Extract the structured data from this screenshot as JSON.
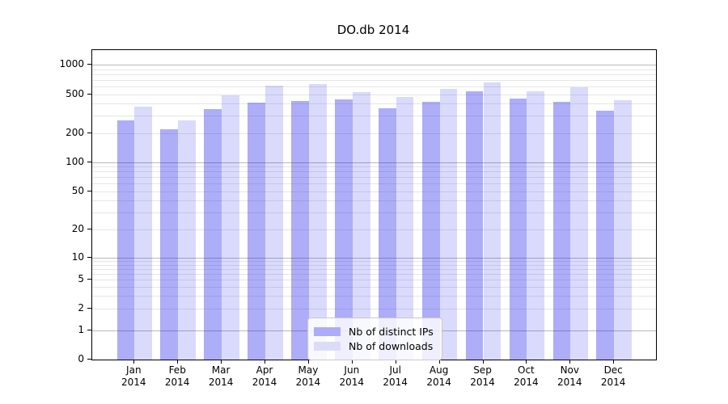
{
  "chart_data": {
    "type": "bar",
    "title": "DO.db 2014",
    "categories": [
      "Jan 2014",
      "Feb 2014",
      "Mar 2014",
      "Apr 2014",
      "May 2014",
      "Jun 2014",
      "Jul 2014",
      "Aug 2014",
      "Sep 2014",
      "Oct 2014",
      "Nov 2014",
      "Dec 2014"
    ],
    "series": [
      {
        "name": "Nb of distinct IPs",
        "color": "rgba(20,20,235,0.35)",
        "solid_hex": "#acacf8",
        "values": [
          270,
          220,
          355,
          410,
          430,
          440,
          360,
          420,
          540,
          450,
          420,
          340
        ]
      },
      {
        "name": "Nb of downloads",
        "color": "rgba(20,20,235,0.155)",
        "solid_hex": "#dcdcf9",
        "values": [
          375,
          270,
          485,
          610,
          640,
          525,
          465,
          565,
          660,
          535,
          595,
          435
        ]
      }
    ],
    "yscale": "symlog",
    "ylim": [
      0,
      1500
    ],
    "yticks": [
      1000,
      500,
      200,
      100,
      50,
      20,
      10,
      5,
      2,
      1,
      0
    ],
    "grid": true,
    "legend_position": "lower-center",
    "xlabel": "",
    "ylabel": ""
  }
}
